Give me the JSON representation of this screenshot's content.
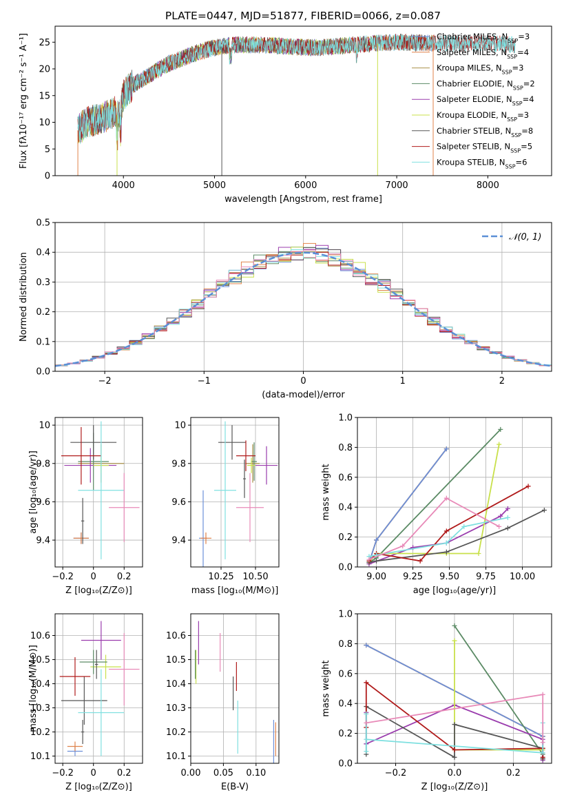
{
  "figure": {
    "title": "PLATE=0447, MJD=51877, FIBERID=0066, z=0.087"
  },
  "colors": {
    "Chabrier MILES": "#6b8fd9",
    "Salpeter MILES": "#e0824a",
    "Kroupa MILES": "#a89048",
    "Chabrier ELODIE": "#5a8a64",
    "Salpeter ELODIE": "#9a3cad",
    "Kroupa ELODIE": "#c8e04a",
    "Chabrier STELIB": "#555555",
    "Salpeter STELIB": "#b01a1a",
    "Kroupa STELIB": "#7fe0e0",
    "pink": "#e88ab8",
    "normal": "#5b8fd6"
  },
  "chart_data": [
    {
      "id": "spectrum",
      "type": "line",
      "xlabel": "wavelength [Angstrom, rest frame]",
      "ylabel": "Flux [fλ10⁻¹⁷ erg cm⁻² s⁻¹ A⁻¹]",
      "xlim": [
        3250,
        8700
      ],
      "ylim": [
        0,
        28
      ],
      "xticks": [
        4000,
        5000,
        6000,
        7000,
        8000
      ],
      "yticks": [
        0,
        5,
        10,
        15,
        20,
        25
      ],
      "grid": false,
      "legend_position": "top-right",
      "continuum": [
        [
          3500,
          8.5
        ],
        [
          3600,
          10
        ],
        [
          3700,
          10.5
        ],
        [
          3800,
          11
        ],
        [
          3900,
          12
        ],
        [
          3950,
          11
        ],
        [
          4000,
          15
        ],
        [
          4100,
          17
        ],
        [
          4300,
          19
        ],
        [
          4500,
          21
        ],
        [
          4800,
          23
        ],
        [
          5000,
          24
        ],
        [
          5200,
          24.5
        ],
        [
          5500,
          24.5
        ],
        [
          6000,
          24
        ],
        [
          6200,
          24
        ],
        [
          6500,
          24.5
        ],
        [
          7000,
          25
        ],
        [
          7500,
          24.8
        ],
        [
          8000,
          24.8
        ],
        [
          8300,
          24.5
        ]
      ],
      "series": [
        {
          "name": "Chabrier MILES, N_SSP=3",
          "color": "#6b8fd9",
          "xmax": 7400
        },
        {
          "name": "Salpeter MILES, N_SSP=4",
          "color": "#e0824a",
          "xmax": 7400
        },
        {
          "name": "Kroupa MILES, N_SSP=3",
          "color": "#a89048",
          "xmax": 7400
        },
        {
          "name": "Chabrier ELODIE, N_SSP=2",
          "color": "#5a8a64",
          "xmax": 6800
        },
        {
          "name": "Salpeter ELODIE, N_SSP=4",
          "color": "#9a3cad",
          "xmax": 6800
        },
        {
          "name": "Kroupa ELODIE, N_SSP=3",
          "color": "#c8e04a",
          "xmax": 6800
        },
        {
          "name": "Chabrier STELIB, N_SSP=8",
          "color": "#555555",
          "xmax": 8300
        },
        {
          "name": "Salpeter STELIB, N_SSP=5",
          "color": "#b01a1a",
          "xmax": 8300
        },
        {
          "name": "Kroupa STELIB, N_SSP=6",
          "color": "#7fe0e0",
          "xmax": 8300
        }
      ],
      "legend": [
        {
          "label": "Chabrier MILES, N",
          "sub": "SSP",
          "val": "=3",
          "color": "#6b8fd9"
        },
        {
          "label": "Salpeter MILES, N",
          "sub": "SSP",
          "val": "=4",
          "color": "#e0824a"
        },
        {
          "label": "Kroupa MILES, N",
          "sub": "SSP",
          "val": "=3",
          "color": "#a89048"
        },
        {
          "label": "Chabrier ELODIE, N",
          "sub": "SSP",
          "val": "=2",
          "color": "#5a8a64"
        },
        {
          "label": "Salpeter ELODIE, N",
          "sub": "SSP",
          "val": "=4",
          "color": "#9a3cad"
        },
        {
          "label": "Kroupa ELODIE, N",
          "sub": "SSP",
          "val": "=3",
          "color": "#c8e04a"
        },
        {
          "label": "Chabrier STELIB, N",
          "sub": "SSP",
          "val": "=8",
          "color": "#555555"
        },
        {
          "label": "Salpeter STELIB, N",
          "sub": "SSP",
          "val": "=5",
          "color": "#b01a1a"
        },
        {
          "label": "Kroupa STELIB, N",
          "sub": "SSP",
          "val": "=6",
          "color": "#7fe0e0"
        }
      ]
    },
    {
      "id": "residuals",
      "type": "line",
      "xlabel": "(data-model)/error",
      "ylabel": "Normed distribution",
      "xlim": [
        -2.5,
        2.5
      ],
      "ylim": [
        0,
        0.5
      ],
      "xticks": [
        -2,
        -1,
        0,
        1,
        2
      ],
      "yticks": [
        0.0,
        0.1,
        0.2,
        0.3,
        0.4,
        0.5
      ],
      "grid": true,
      "legend_position": "top-right",
      "legend_label": "𝒩(0, 1)",
      "bins": 40,
      "series": [
        {
          "color": "#6b8fd9"
        },
        {
          "color": "#e0824a"
        },
        {
          "color": "#a89048"
        },
        {
          "color": "#5a8a64"
        },
        {
          "color": "#9a3cad"
        },
        {
          "color": "#c8e04a"
        },
        {
          "color": "#555555"
        },
        {
          "color": "#b01a1a"
        },
        {
          "color": "#7fe0e0"
        },
        {
          "color": "#e88ab8"
        }
      ],
      "normal_curve": {
        "mean": 0,
        "sigma": 1,
        "color": "#5b8fd6"
      }
    },
    {
      "id": "age_vs_Z",
      "type": "scatter",
      "xlabel": "Z [log₁₀(Z/Z⊙)]",
      "ylabel": "age  [log₁₀(age/yr)]",
      "xlim": [
        -0.25,
        0.32
      ],
      "ylim": [
        9.26,
        10.04
      ],
      "xticks": [
        -0.2,
        0.0,
        0.2
      ],
      "yticks": [
        9.4,
        9.6,
        9.8,
        10.0
      ],
      "grid": true,
      "points": [
        {
          "x": -0.08,
          "y": 9.41,
          "xerr": 0.05,
          "yerr": 0.03,
          "color": "#6b8fd9"
        },
        {
          "x": -0.08,
          "y": 9.41,
          "xerr": 0.05,
          "yerr": 0.03,
          "color": "#e0824a"
        },
        {
          "x": 0.05,
          "y": 9.8,
          "xerr": 0.15,
          "yerr": 0.1,
          "color": "#a89048"
        },
        {
          "x": 0.0,
          "y": 9.81,
          "xerr": 0.1,
          "yerr": 0.15,
          "color": "#5a8a64"
        },
        {
          "x": -0.02,
          "y": 9.79,
          "xerr": 0.17,
          "yerr": 0.09,
          "color": "#9a3cad"
        },
        {
          "x": 0.05,
          "y": 9.79,
          "xerr": 0.05,
          "yerr": 0.04,
          "color": "#c8e04a"
        },
        {
          "x": 0.0,
          "y": 9.91,
          "xerr": 0.15,
          "yerr": 0.09,
          "color": "#555555"
        },
        {
          "x": -0.08,
          "y": 9.84,
          "xerr": 0.13,
          "yerr": 0.15,
          "color": "#b01a1a"
        },
        {
          "x": 0.05,
          "y": 9.66,
          "xerr": 0.15,
          "yerr": 0.36,
          "color": "#7fe0e0"
        },
        {
          "x": 0.2,
          "y": 9.57,
          "xerr": 0.1,
          "yerr": 0.18,
          "color": "#e88ab8"
        },
        {
          "x": -0.07,
          "y": 9.5,
          "xerr": 0.01,
          "yerr": 0.12,
          "color": "#555555"
        }
      ]
    },
    {
      "id": "age_vs_mass",
      "type": "scatter",
      "xlabel": "mass [log₁₀(M/M⊙)]",
      "ylabel": "",
      "xlim": [
        10.03,
        10.67
      ],
      "ylim": [
        9.26,
        10.04
      ],
      "xticks": [
        10.25,
        10.5
      ],
      "xticklabels": [
        "10.25",
        "10.50"
      ],
      "yticks": [
        9.4,
        9.6,
        9.8,
        10.0
      ],
      "grid": true,
      "points": [
        {
          "x": 10.12,
          "y": 9.41,
          "xerr": 0.03,
          "yerr": 0.25,
          "color": "#6b8fd9"
        },
        {
          "x": 10.14,
          "y": 9.41,
          "xerr": 0.04,
          "yerr": 0.03,
          "color": "#e0824a"
        },
        {
          "x": 10.48,
          "y": 9.8,
          "xerr": 0.05,
          "yerr": 0.1,
          "color": "#a89048"
        },
        {
          "x": 10.49,
          "y": 9.81,
          "xerr": 0.02,
          "yerr": 0.1,
          "color": "#5a8a64"
        },
        {
          "x": 10.58,
          "y": 9.79,
          "xerr": 0.08,
          "yerr": 0.1,
          "color": "#9a3cad"
        },
        {
          "x": 10.47,
          "y": 9.79,
          "xerr": 0.03,
          "yerr": 0.04,
          "color": "#c8e04a"
        },
        {
          "x": 10.33,
          "y": 9.91,
          "xerr": 0.1,
          "yerr": 0.09,
          "color": "#555555"
        },
        {
          "x": 10.43,
          "y": 9.84,
          "xerr": 0.07,
          "yerr": 0.08,
          "color": "#b01a1a"
        },
        {
          "x": 10.28,
          "y": 9.66,
          "xerr": 0.08,
          "yerr": 0.36,
          "color": "#7fe0e0"
        },
        {
          "x": 10.46,
          "y": 9.57,
          "xerr": 0.1,
          "yerr": 0.18,
          "color": "#e88ab8"
        },
        {
          "x": 10.42,
          "y": 9.72,
          "xerr": 0.01,
          "yerr": 0.1,
          "color": "#555555"
        }
      ]
    },
    {
      "id": "weight_vs_age",
      "type": "line",
      "xlabel": "age  [log₁₀(age/yr)]",
      "ylabel": "mass weight",
      "xlim": [
        8.87,
        10.2
      ],
      "ylim": [
        0,
        1
      ],
      "xticks": [
        9.0,
        9.25,
        9.5,
        9.75,
        10.0
      ],
      "xticklabels": [
        "9.00",
        "9.25",
        "9.50",
        "9.75",
        "10.00"
      ],
      "yticks": [
        0.0,
        0.2,
        0.4,
        0.6,
        0.8,
        1.0
      ],
      "grid": true,
      "series": [
        {
          "color": "#a89048",
          "x": [
            8.95,
            9.0,
            9.48
          ],
          "y": [
            0.03,
            0.18,
            0.79
          ]
        },
        {
          "color": "#e0824a",
          "x": [
            8.95,
            9.0,
            9.48
          ],
          "y": [
            0.03,
            0.18,
            0.79
          ]
        },
        {
          "color": "#6b8fd9",
          "x": [
            8.95,
            9.0,
            9.48
          ],
          "y": [
            0.03,
            0.18,
            0.79
          ]
        },
        {
          "color": "#5a8a64",
          "x": [
            8.95,
            9.0,
            9.85
          ],
          "y": [
            0.03,
            0.06,
            0.92
          ]
        },
        {
          "color": "#9a3cad",
          "x": [
            8.95,
            9.25,
            9.48,
            9.85,
            9.9
          ],
          "y": [
            0.02,
            0.13,
            0.16,
            0.34,
            0.39
          ]
        },
        {
          "color": "#c8e04a",
          "x": [
            8.95,
            9.0,
            9.48,
            9.7,
            9.84
          ],
          "y": [
            0.03,
            0.09,
            0.09,
            0.09,
            0.82
          ]
        },
        {
          "color": "#555555",
          "x": [
            8.95,
            9.0,
            9.48,
            9.9,
            10.15
          ],
          "y": [
            0.03,
            0.04,
            0.1,
            0.26,
            0.38
          ]
        },
        {
          "color": "#b01a1a",
          "x": [
            8.95,
            9.0,
            9.3,
            9.48,
            10.04
          ],
          "y": [
            0.04,
            0.09,
            0.04,
            0.24,
            0.54
          ]
        },
        {
          "color": "#7fe0e0",
          "x": [
            8.95,
            9.0,
            9.48,
            9.6,
            9.9
          ],
          "y": [
            0.07,
            0.08,
            0.16,
            0.27,
            0.33
          ]
        },
        {
          "color": "#e88ab8",
          "x": [
            8.95,
            9.18,
            9.48,
            9.84
          ],
          "y": [
            0.05,
            0.14,
            0.46,
            0.27
          ]
        }
      ]
    },
    {
      "id": "mass_vs_Z",
      "type": "scatter",
      "xlabel": "Z [log₁₀(Z/Z⊙)]",
      "ylabel": "mass [log₁₀(M/M⊙)]",
      "xlim": [
        -0.25,
        0.32
      ],
      "ylim": [
        10.07,
        10.69
      ],
      "xticks": [
        -0.2,
        0.0,
        0.2
      ],
      "yticks": [
        10.1,
        10.2,
        10.3,
        10.4,
        10.5,
        10.6
      ],
      "grid": true,
      "points": [
        {
          "x": -0.12,
          "y": 10.12,
          "xerr": 0.05,
          "yerr": 0.02,
          "color": "#6b8fd9"
        },
        {
          "x": -0.12,
          "y": 10.14,
          "xerr": 0.05,
          "yerr": 0.02,
          "color": "#e0824a"
        },
        {
          "x": 0.08,
          "y": 10.47,
          "xerr": 0.1,
          "yerr": 0.05,
          "color": "#c8e04a"
        },
        {
          "x": 0.0,
          "y": 10.49,
          "xerr": 0.09,
          "yerr": 0.05,
          "color": "#5a8a64"
        },
        {
          "x": 0.05,
          "y": 10.58,
          "xerr": 0.13,
          "yerr": 0.08,
          "color": "#9a3cad"
        },
        {
          "x": -0.06,
          "y": 10.33,
          "xerr": 0.15,
          "yerr": 0.1,
          "color": "#555555"
        },
        {
          "x": -0.12,
          "y": 10.43,
          "xerr": 0.1,
          "yerr": 0.08,
          "color": "#b01a1a"
        },
        {
          "x": 0.05,
          "y": 10.28,
          "xerr": 0.15,
          "yerr": 0.18,
          "color": "#7fe0e0"
        },
        {
          "x": 0.2,
          "y": 10.46,
          "xerr": 0.1,
          "yerr": 0.15,
          "color": "#e88ab8"
        },
        {
          "x": 0.02,
          "y": 10.48,
          "xerr": 0.01,
          "yerr": 0.06,
          "color": "#555555"
        },
        {
          "x": -0.07,
          "y": 10.2,
          "xerr": 0.01,
          "yerr": 0.05,
          "color": "#555555"
        }
      ]
    },
    {
      "id": "mass_vs_ebv",
      "type": "scatter",
      "xlabel": "E(B-V)",
      "ylabel": "",
      "xlim": [
        0.0,
        0.135
      ],
      "ylim": [
        10.07,
        10.69
      ],
      "xticks": [
        0.0,
        0.05,
        0.1
      ],
      "xticklabels": [
        "0.00",
        "0.05",
        "0.10"
      ],
      "yticks": [
        10.1,
        10.2,
        10.3,
        10.4,
        10.5,
        10.6
      ],
      "grid": true,
      "points": [
        {
          "x": 0.13,
          "y": 10.17,
          "xerr": 0,
          "yerr": 0.07,
          "color": "#e0824a"
        },
        {
          "x": 0.127,
          "y": 10.16,
          "xerr": 0,
          "yerr": 0.09,
          "color": "#6b8fd9"
        },
        {
          "x": 0.012,
          "y": 10.57,
          "xerr": 0,
          "yerr": 0.09,
          "color": "#9a3cad"
        },
        {
          "x": 0.008,
          "y": 10.47,
          "xerr": 0,
          "yerr": 0.07,
          "color": "#c8e04a"
        },
        {
          "x": 0.007,
          "y": 10.48,
          "xerr": 0,
          "yerr": 0.06,
          "color": "#5a8a64"
        },
        {
          "x": 0.045,
          "y": 10.53,
          "xerr": 0,
          "yerr": 0.08,
          "color": "#e88ab8"
        },
        {
          "x": 0.07,
          "y": 10.43,
          "xerr": 0,
          "yerr": 0.06,
          "color": "#b01a1a"
        },
        {
          "x": 0.065,
          "y": 10.36,
          "xerr": 0,
          "yerr": 0.07,
          "color": "#555555"
        },
        {
          "x": 0.072,
          "y": 10.22,
          "xerr": 0,
          "yerr": 0.11,
          "color": "#7fe0e0"
        }
      ]
    },
    {
      "id": "weight_vs_Z",
      "type": "line",
      "xlabel": "Z [log₁₀(Z/Z⊙)]",
      "ylabel": "mass weight",
      "xlim": [
        -0.33,
        0.33
      ],
      "ylim": [
        0,
        1
      ],
      "xticks": [
        -0.2,
        0.0,
        0.2
      ],
      "xticklabels": [
        "−0.2",
        "0.0",
        "0.2"
      ],
      "yticks": [
        0.0,
        0.2,
        0.4,
        0.6,
        0.8,
        1.0
      ],
      "grid": true,
      "series": [
        {
          "color": "#a89048",
          "x": [
            -0.3,
            0.3,
            0.3
          ],
          "y": [
            0.79,
            0.18,
            0.03
          ]
        },
        {
          "color": "#e0824a",
          "x": [
            -0.3,
            0.3,
            0.3
          ],
          "y": [
            0.79,
            0.18,
            0.03
          ]
        },
        {
          "color": "#6b8fd9",
          "x": [
            -0.3,
            0.3,
            0.3
          ],
          "y": [
            0.79,
            0.18,
            0.03
          ]
        },
        {
          "color": "#5a8a64",
          "x": [
            0.0,
            0.3,
            0.3
          ],
          "y": [
            0.92,
            0.06,
            0.03
          ]
        },
        {
          "color": "#9a3cad",
          "x": [
            -0.3,
            -0.3,
            0.0,
            0.3,
            0.3
          ],
          "y": [
            0.34,
            0.13,
            0.39,
            0.16,
            0.02
          ]
        },
        {
          "color": "#c8e04a",
          "x": [
            0.0,
            0.0,
            0.0,
            0.3
          ],
          "y": [
            0.82,
            0.09,
            0.09,
            0.09
          ]
        },
        {
          "color": "#555555",
          "x": [
            -0.3,
            -0.3,
            0.0,
            0.0,
            0.3,
            0.3
          ],
          "y": [
            0.06,
            0.38,
            0.04,
            0.26,
            0.1,
            0.03
          ]
        },
        {
          "color": "#b01a1a",
          "x": [
            -0.3,
            -0.3,
            0.0,
            0.3,
            0.3
          ],
          "y": [
            0.24,
            0.54,
            0.09,
            0.1,
            0.04
          ]
        },
        {
          "color": "#7fe0e0",
          "x": [
            -0.3,
            -0.3,
            -0.3,
            0.3,
            0.3
          ],
          "y": [
            0.08,
            0.33,
            0.16,
            0.07,
            0.27
          ]
        },
        {
          "color": "#e88ab8",
          "x": [
            -0.3,
            0.3,
            0.3
          ],
          "y": [
            0.27,
            0.46,
            0.14
          ]
        }
      ]
    }
  ]
}
